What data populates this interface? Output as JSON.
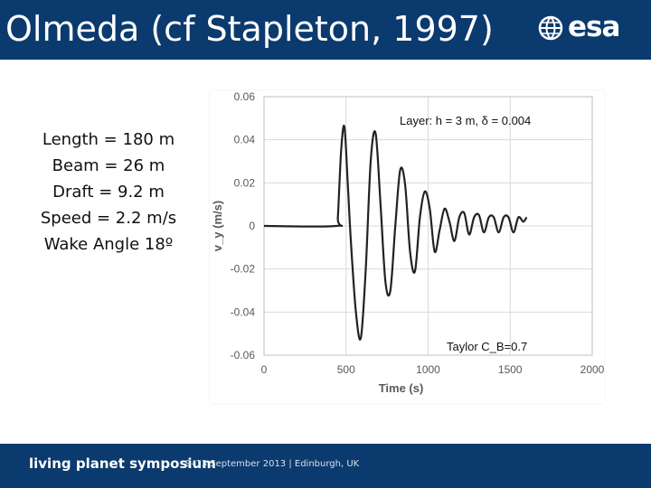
{
  "header": {
    "title": "Olmeda (cf Stapleton, 1997)",
    "logo_text": "esa"
  },
  "specs": {
    "length": "Length = 180 m",
    "beam": "Beam = 26 m",
    "draft": "Draft = 9.2 m",
    "speed": "Speed = 2.2 m/s",
    "wake_angle": "Wake Angle 18º"
  },
  "footer": {
    "symposium": "living planet symposium",
    "event_info": "9–13 September 2013 | Edinburgh, UK"
  },
  "colors": {
    "brand_blue": "#0b3a6e",
    "series_line": "#222222",
    "grid": "#d9d9d9"
  },
  "chart_data": {
    "type": "line",
    "xlabel": "Time (s)",
    "ylabel": "v_y (m/s)",
    "xlim": [
      0,
      2000
    ],
    "ylim": [
      -0.06,
      0.06
    ],
    "x_ticks": [
      "0",
      "500",
      "1000",
      "1500",
      "2000"
    ],
    "y_ticks": [
      "0.06",
      "0.04",
      "0.02",
      "0",
      "-0.02",
      "-0.04",
      "-0.06"
    ],
    "grid": true,
    "annotations": [
      "Layer: h = 3 m, δ = 0.004",
      "Taylor C_B=0.7"
    ],
    "series": [
      {
        "x": [
          0,
          440,
          450,
          470,
          490,
          510,
          530,
          560,
          590,
          620,
          650,
          680,
          710,
          740,
          770,
          800,
          830,
          860,
          890,
          920,
          950,
          980,
          1010,
          1040,
          1070,
          1100,
          1130,
          1160,
          1190,
          1220,
          1250,
          1280,
          1310,
          1340,
          1370,
          1400,
          1430,
          1460,
          1490,
          1520,
          1550,
          1580,
          1600
        ],
        "y": [
          0,
          0,
          0.004,
          0.035,
          0.046,
          0.02,
          -0.008,
          -0.04,
          -0.052,
          -0.02,
          0.03,
          0.043,
          0.01,
          -0.026,
          -0.03,
          0.0,
          0.026,
          0.019,
          -0.012,
          -0.021,
          0.004,
          0.016,
          0.008,
          -0.012,
          -0.002,
          0.008,
          0.002,
          -0.007,
          0.004,
          0.006,
          -0.004,
          0.004,
          0.005,
          -0.003,
          0.004,
          0.004,
          -0.003,
          0.004,
          0.004,
          -0.003,
          0.004,
          0.002,
          0.004
        ]
      }
    ]
  }
}
